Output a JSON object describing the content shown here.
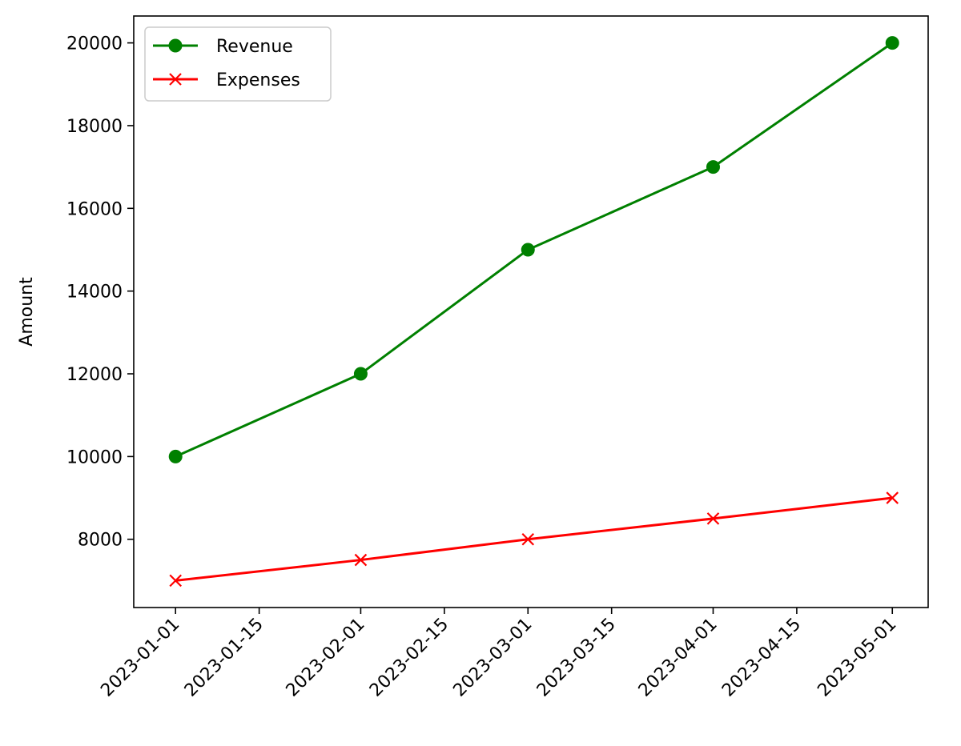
{
  "chart_data": {
    "type": "line",
    "title": "",
    "xlabel": "",
    "ylabel": "Amount",
    "x": [
      "2023-01-01",
      "2023-02-01",
      "2023-03-01",
      "2023-04-01",
      "2023-05-01"
    ],
    "xlim": [
      "2022-12-25",
      "2023-05-07"
    ],
    "ylim": [
      6350,
      20650
    ],
    "x_ticks": [
      "2023-01-01",
      "2023-01-15",
      "2023-02-01",
      "2023-02-15",
      "2023-03-01",
      "2023-03-15",
      "2023-04-01",
      "2023-04-15",
      "2023-05-01"
    ],
    "y_ticks": [
      8000,
      10000,
      12000,
      14000,
      16000,
      18000,
      20000
    ],
    "grid": false,
    "legend_position": "top-left",
    "series": [
      {
        "name": "Revenue",
        "values": [
          10000,
          12000,
          15000,
          17000,
          20000
        ],
        "color": "#008000",
        "marker": "circle"
      },
      {
        "name": "Expenses",
        "values": [
          7000,
          7500,
          8000,
          8500,
          9000
        ],
        "color": "#ff0000",
        "marker": "x"
      }
    ]
  }
}
